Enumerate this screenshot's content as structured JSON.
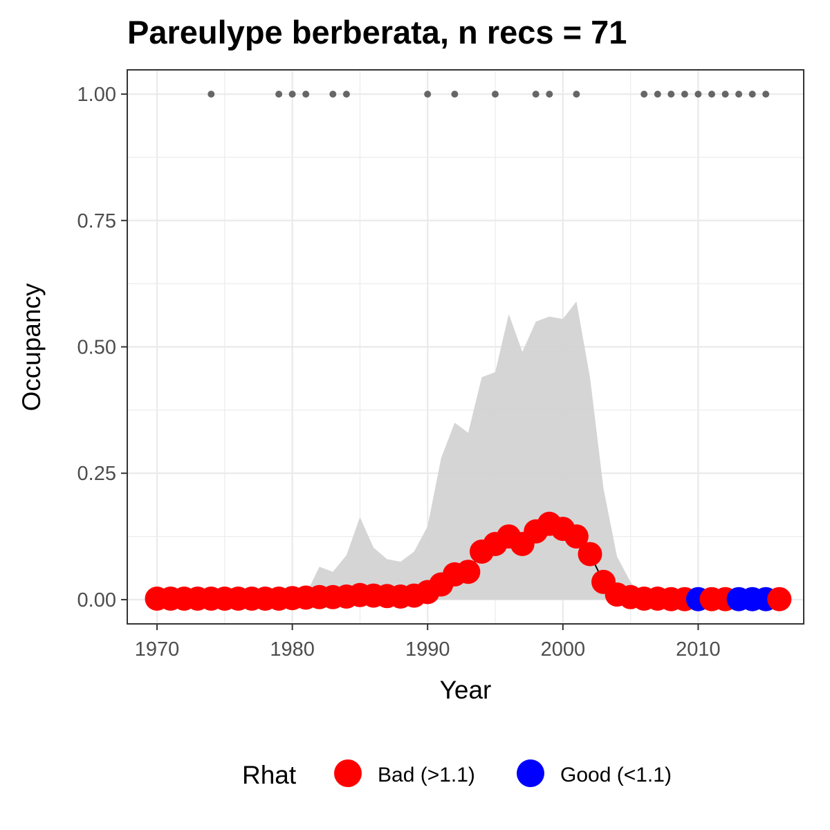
{
  "chart_data": {
    "type": "line",
    "title": "Pareulype berberata, n recs = 71",
    "xlabel": "Year",
    "ylabel": "Occupancy",
    "xlim": [
      1967.8,
      2017.8
    ],
    "ylim": [
      -0.048,
      1.048
    ],
    "x_ticks": [
      1970,
      1980,
      1990,
      2000,
      2010
    ],
    "x_tick_labels": [
      "1970",
      "1980",
      "1990",
      "2000",
      "2010"
    ],
    "y_ticks": [
      0,
      0.25,
      0.5,
      0.75,
      1.0
    ],
    "y_tick_labels": [
      "0.00",
      "0.25",
      "0.50",
      "0.75",
      "1.00"
    ],
    "grid": true,
    "legend": {
      "title": "Rhat",
      "position": "bottom",
      "entries": [
        {
          "label": "Bad (>1.1)",
          "color": "#ff0000"
        },
        {
          "label": "Good (<1.1)",
          "color": "#0000ff"
        }
      ]
    },
    "colors": {
      "bad": "#ff0000",
      "good": "#0000ff",
      "ribbon": "#d3d3d3",
      "records": "#666666",
      "panel_border": "#333333",
      "grid": "#ebebeb"
    },
    "records_years": [
      1974,
      1979,
      1980,
      1981,
      1983,
      1984,
      1990,
      1992,
      1995,
      1998,
      1999,
      2001,
      2006,
      2007,
      2008,
      2009,
      2010,
      2011,
      2012,
      2013,
      2014,
      2015
    ],
    "records_y": 1.0,
    "series": [
      {
        "x": [
          1970,
          1971,
          1972,
          1973,
          1974,
          1975,
          1976,
          1977,
          1978,
          1979,
          1980,
          1981,
          1982,
          1983,
          1984,
          1985,
          1986,
          1987,
          1988,
          1989,
          1990,
          1991,
          1992,
          1993,
          1994,
          1995,
          1996,
          1997,
          1998,
          1999,
          2000,
          2001,
          2002,
          2003,
          2004,
          2005,
          2006,
          2007,
          2008,
          2009,
          2010,
          2011,
          2012,
          2013,
          2014,
          2015,
          2016
        ],
        "mean": [
          0.002,
          0.002,
          0.002,
          0.002,
          0.002,
          0.002,
          0.002,
          0.002,
          0.002,
          0.002,
          0.003,
          0.004,
          0.005,
          0.005,
          0.006,
          0.009,
          0.008,
          0.007,
          0.006,
          0.008,
          0.015,
          0.03,
          0.05,
          0.055,
          0.095,
          0.11,
          0.125,
          0.11,
          0.135,
          0.15,
          0.14,
          0.125,
          0.09,
          0.035,
          0.01,
          0.005,
          0.002,
          0.002,
          0.001,
          0.001,
          0.001,
          0.001,
          0.001,
          0.001,
          0.001,
          0.001,
          0.001
        ],
        "upper": [
          0.002,
          0.002,
          0.002,
          0.002,
          0.002,
          0.002,
          0.002,
          0.002,
          0.002,
          0.002,
          0.004,
          0.01,
          0.065,
          0.055,
          0.088,
          0.163,
          0.103,
          0.08,
          0.075,
          0.095,
          0.145,
          0.28,
          0.35,
          0.33,
          0.44,
          0.45,
          0.565,
          0.49,
          0.55,
          0.56,
          0.555,
          0.59,
          0.44,
          0.22,
          0.085,
          0.035,
          0.003,
          0.002,
          0.001,
          0.001,
          0.001,
          0.001,
          0.001,
          0.001,
          0.001,
          0.001,
          0.001
        ],
        "lower": [
          0,
          0,
          0,
          0,
          0,
          0,
          0,
          0,
          0,
          0,
          0,
          0,
          0,
          0,
          0,
          0,
          0,
          0,
          0,
          0,
          0,
          0,
          0,
          0,
          0,
          0,
          0,
          0,
          0,
          0,
          0,
          0,
          0,
          0,
          0,
          0,
          0,
          0,
          0,
          0,
          0,
          0,
          0,
          0,
          0,
          0,
          0
        ],
        "rhat": [
          "Bad (>1.1)",
          "Bad (>1.1)",
          "Bad (>1.1)",
          "Bad (>1.1)",
          "Bad (>1.1)",
          "Bad (>1.1)",
          "Bad (>1.1)",
          "Bad (>1.1)",
          "Bad (>1.1)",
          "Bad (>1.1)",
          "Bad (>1.1)",
          "Bad (>1.1)",
          "Bad (>1.1)",
          "Bad (>1.1)",
          "Bad (>1.1)",
          "Bad (>1.1)",
          "Bad (>1.1)",
          "Bad (>1.1)",
          "Bad (>1.1)",
          "Bad (>1.1)",
          "Bad (>1.1)",
          "Bad (>1.1)",
          "Bad (>1.1)",
          "Bad (>1.1)",
          "Bad (>1.1)",
          "Bad (>1.1)",
          "Bad (>1.1)",
          "Bad (>1.1)",
          "Bad (>1.1)",
          "Bad (>1.1)",
          "Bad (>1.1)",
          "Bad (>1.1)",
          "Bad (>1.1)",
          "Bad (>1.1)",
          "Bad (>1.1)",
          "Bad (>1.1)",
          "Bad (>1.1)",
          "Bad (>1.1)",
          "Bad (>1.1)",
          "Bad (>1.1)",
          "Good (<1.1)",
          "Bad (>1.1)",
          "Bad (>1.1)",
          "Good (<1.1)",
          "Good (<1.1)",
          "Good (<1.1)",
          "Bad (>1.1)"
        ]
      }
    ]
  }
}
